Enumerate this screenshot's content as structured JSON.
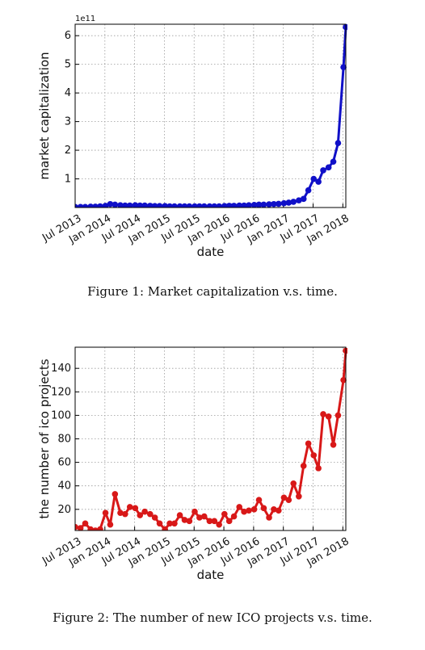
{
  "figures": [
    {
      "caption": "Figure 1: Market capitalization v.s. time.",
      "color": "#1010c8",
      "chart_data": {
        "type": "line",
        "xlabel": "date",
        "ylabel": "market capitalization",
        "y_offset_label": "1e11",
        "ylim": [
          0,
          6.4
        ],
        "yticks": [
          1,
          2,
          3,
          4,
          5,
          6
        ],
        "xlim": [
          2013.45,
          2018.0
        ],
        "xtick_labels": [
          "Jul 2013",
          "Jan 2014",
          "Jul 2014",
          "Jan 2015",
          "Jul 2015",
          "Jan 2016",
          "Jul 2016",
          "Jan 2017",
          "Jul 2017",
          "Jan 2018"
        ],
        "grid": true,
        "series": [
          {
            "x": [
              2013.45,
              2013.54,
              2013.62,
              2013.71,
              2013.79,
              2013.87,
              2013.96,
              2014.04,
              2014.12,
              2014.21,
              2014.29,
              2014.37,
              2014.46,
              2014.54,
              2014.62,
              2014.71,
              2014.79,
              2014.87,
              2014.96,
              2015.04,
              2015.12,
              2015.21,
              2015.29,
              2015.37,
              2015.46,
              2015.54,
              2015.62,
              2015.71,
              2015.79,
              2015.87,
              2015.96,
              2016.04,
              2016.12,
              2016.21,
              2016.29,
              2016.37,
              2016.46,
              2016.54,
              2016.62,
              2016.71,
              2016.79,
              2016.87,
              2016.96,
              2017.04,
              2017.12,
              2017.21,
              2017.29,
              2017.37,
              2017.46,
              2017.54,
              2017.62,
              2017.71,
              2017.79,
              2017.87,
              2017.96,
              2018.0
            ],
            "values": [
              0.02,
              0.02,
              0.02,
              0.03,
              0.03,
              0.04,
              0.06,
              0.12,
              0.1,
              0.08,
              0.07,
              0.07,
              0.08,
              0.07,
              0.07,
              0.06,
              0.05,
              0.05,
              0.05,
              0.04,
              0.04,
              0.04,
              0.04,
              0.04,
              0.04,
              0.04,
              0.04,
              0.04,
              0.04,
              0.04,
              0.05,
              0.06,
              0.06,
              0.07,
              0.07,
              0.08,
              0.09,
              0.1,
              0.1,
              0.11,
              0.12,
              0.13,
              0.15,
              0.17,
              0.2,
              0.25,
              0.3,
              0.6,
              1.0,
              0.9,
              1.3,
              1.4,
              1.6,
              2.25,
              4.9,
              6.3
            ]
          }
        ]
      }
    },
    {
      "caption": "Figure 2: The number of new ICO projects v.s. time.",
      "color": "#d81818",
      "chart_data": {
        "type": "line",
        "xlabel": "date",
        "ylabel": "the number of ico projects",
        "ylim": [
          2,
          158
        ],
        "yticks": [
          20,
          40,
          60,
          80,
          100,
          120,
          140
        ],
        "xlim": [
          2013.45,
          2018.0
        ],
        "xtick_labels": [
          "Jul 2013",
          "Jan 2014",
          "Jul 2014",
          "Jan 2015",
          "Jul 2015",
          "Jan 2016",
          "Jul 2016",
          "Jan 2017",
          "Jul 2017",
          "Jan 2018"
        ],
        "grid": true,
        "series": [
          {
            "x": [
              2013.45,
              2013.54,
              2013.62,
              2013.71,
              2013.79,
              2013.87,
              2013.96,
              2014.04,
              2014.12,
              2014.21,
              2014.29,
              2014.37,
              2014.46,
              2014.54,
              2014.62,
              2014.71,
              2014.79,
              2014.87,
              2014.96,
              2015.04,
              2015.12,
              2015.21,
              2015.29,
              2015.37,
              2015.46,
              2015.54,
              2015.62,
              2015.71,
              2015.79,
              2015.87,
              2015.96,
              2016.04,
              2016.12,
              2016.21,
              2016.29,
              2016.37,
              2016.46,
              2016.54,
              2016.62,
              2016.71,
              2016.79,
              2016.87,
              2016.96,
              2017.04,
              2017.12,
              2017.21,
              2017.29,
              2017.37,
              2017.46,
              2017.54,
              2017.62,
              2017.71,
              2017.79,
              2017.87,
              2017.96,
              2018.0
            ],
            "values": [
              5,
              4,
              8,
              3,
              2,
              3,
              17,
              7,
              33,
              17,
              16,
              22,
              21,
              15,
              18,
              16,
              13,
              8,
              3,
              8,
              8,
              15,
              11,
              10,
              18,
              13,
              14,
              10,
              10,
              7,
              16,
              10,
              14,
              22,
              18,
              19,
              20,
              28,
              21,
              13,
              20,
              19,
              30,
              28,
              42,
              31,
              57,
              76,
              66,
              55,
              101,
              99,
              75,
              100,
              130,
              155
            ]
          }
        ]
      }
    }
  ]
}
